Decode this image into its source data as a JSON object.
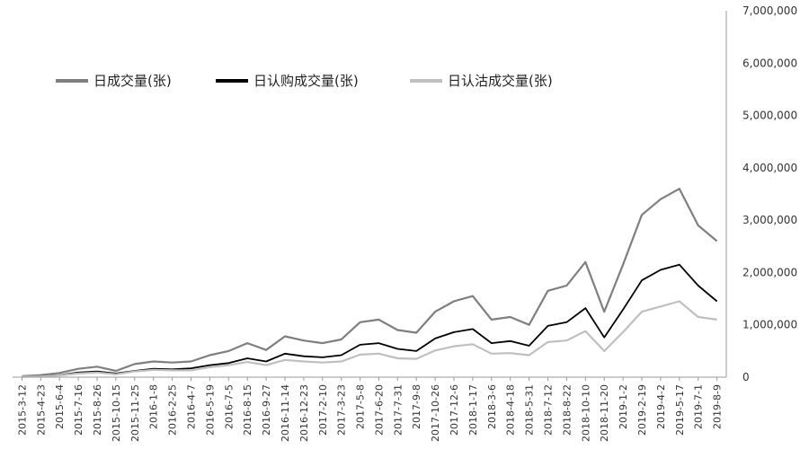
{
  "chart_data": {
    "type": "line",
    "title": "",
    "xlabel": "",
    "ylabel": "",
    "ylim": [
      0,
      7000000
    ],
    "y_ticks": [
      0,
      1000000,
      2000000,
      3000000,
      4000000,
      5000000,
      6000000,
      7000000
    ],
    "y_tick_labels": [
      "0",
      "1,000,000",
      "2,000,000",
      "3,000,000",
      "4,000,000",
      "5,000,000",
      "6,000,000",
      "7,000,000"
    ],
    "y_axis_side": "right",
    "grid": false,
    "legend_position": "top-left",
    "x_labels_rotated": true,
    "categories": [
      "2015-3-12",
      "2015-4-23",
      "2015-6-4",
      "2015-7-16",
      "2015-8-26",
      "2015-10-15",
      "2015-11-25",
      "2016-1-8",
      "2016-2-25",
      "2016-4-7",
      "2016-5-19",
      "2016-7-5",
      "2016-8-15",
      "2016-9-27",
      "2016-11-14",
      "2016-12-23",
      "2017-2-10",
      "2017-3-23",
      "2017-5-8",
      "2017-6-20",
      "2017-7-31",
      "2017-9-8",
      "2017-10-26",
      "2017-12-6",
      "2018-1-17",
      "2018-3-6",
      "2018-4-18",
      "2018-5-31",
      "2018-7-12",
      "2018-8-22",
      "2018-10-10",
      "2018-11-20",
      "2019-1-2",
      "2019-2-19",
      "2019-4-2",
      "2019-5-17",
      "2019-7-1",
      "2019-8-9"
    ],
    "series": [
      {
        "name": "日成交量(张)",
        "color": "#7f7f7f",
        "values": [
          20000,
          40000,
          80000,
          160000,
          200000,
          120000,
          250000,
          300000,
          280000,
          300000,
          420000,
          500000,
          650000,
          520000,
          780000,
          700000,
          650000,
          720000,
          1050000,
          1100000,
          900000,
          850000,
          1250000,
          1450000,
          1550000,
          1100000,
          1150000,
          1000000,
          1650000,
          1750000,
          2200000,
          1250000,
          2150000,
          3100000,
          3400000,
          3600000,
          2900000,
          2600000
        ]
      },
      {
        "name": "日认购成交量(张)",
        "color": "#000000",
        "values": [
          10000,
          20000,
          40000,
          90000,
          110000,
          70000,
          120000,
          160000,
          150000,
          170000,
          230000,
          270000,
          360000,
          300000,
          450000,
          400000,
          380000,
          420000,
          620000,
          650000,
          540000,
          500000,
          740000,
          860000,
          920000,
          650000,
          690000,
          600000,
          980000,
          1050000,
          1320000,
          760000,
          1290000,
          1850000,
          2050000,
          2150000,
          1750000,
          1450000
        ]
      },
      {
        "name": "日认沽成交量(张)",
        "color": "#bfbfbf",
        "values": [
          8000,
          16000,
          35000,
          70000,
          90000,
          55000,
          110000,
          140000,
          130000,
          130000,
          190000,
          230000,
          290000,
          230000,
          330000,
          300000,
          280000,
          300000,
          430000,
          450000,
          360000,
          350000,
          510000,
          590000,
          630000,
          450000,
          460000,
          420000,
          670000,
          700000,
          880000,
          500000,
          860000,
          1250000,
          1350000,
          1450000,
          1150000,
          1100000
        ]
      }
    ]
  }
}
